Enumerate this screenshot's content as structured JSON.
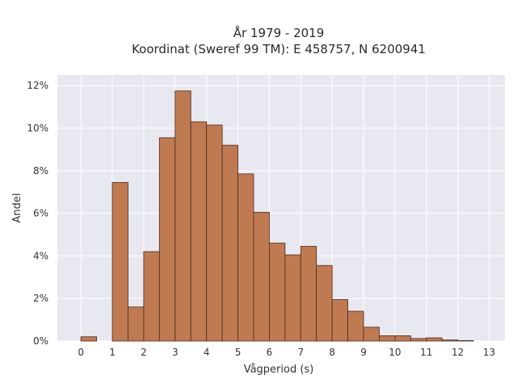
{
  "chart_data": {
    "type": "bar",
    "title": [
      "År 1979 - 2019",
      "Koordinat (Sweref 99 TM): E 458757, N 6200941"
    ],
    "xlabel": "Vågperiod (s)",
    "ylabel": "Andel",
    "xlim": [
      -0.75,
      13.5
    ],
    "ylim": [
      0,
      12.5
    ],
    "x_ticks": [
      0,
      1,
      2,
      3,
      4,
      5,
      6,
      7,
      8,
      9,
      10,
      11,
      12,
      13
    ],
    "x_tick_labels": [
      "0",
      "1",
      "2",
      "3",
      "4",
      "5",
      "6",
      "7",
      "8",
      "9",
      "10",
      "11",
      "12",
      "13"
    ],
    "y_ticks": [
      0,
      2,
      4,
      6,
      8,
      10,
      12
    ],
    "y_tick_labels": [
      "0%",
      "2%",
      "4%",
      "6%",
      "8%",
      "10%",
      "12%"
    ],
    "bin_width": 0.5,
    "bins": [
      {
        "x0": 0.0,
        "value": 0.2
      },
      {
        "x0": 1.0,
        "value": 7.45
      },
      {
        "x0": 1.5,
        "value": 1.6
      },
      {
        "x0": 2.0,
        "value": 4.2
      },
      {
        "x0": 2.5,
        "value": 9.55
      },
      {
        "x0": 3.0,
        "value": 11.75
      },
      {
        "x0": 3.5,
        "value": 10.3
      },
      {
        "x0": 4.0,
        "value": 10.15
      },
      {
        "x0": 4.5,
        "value": 9.2
      },
      {
        "x0": 5.0,
        "value": 7.85
      },
      {
        "x0": 5.5,
        "value": 6.05
      },
      {
        "x0": 6.0,
        "value": 4.6
      },
      {
        "x0": 6.5,
        "value": 4.05
      },
      {
        "x0": 7.0,
        "value": 4.45
      },
      {
        "x0": 7.5,
        "value": 3.55
      },
      {
        "x0": 8.0,
        "value": 1.95
      },
      {
        "x0": 8.5,
        "value": 1.4
      },
      {
        "x0": 9.0,
        "value": 0.65
      },
      {
        "x0": 9.5,
        "value": 0.25
      },
      {
        "x0": 10.0,
        "value": 0.25
      },
      {
        "x0": 10.5,
        "value": 0.12
      },
      {
        "x0": 11.0,
        "value": 0.15
      },
      {
        "x0": 11.5,
        "value": 0.05
      },
      {
        "x0": 12.0,
        "value": 0.02
      }
    ],
    "grid": true,
    "colors": {
      "bar_fill": "#c07a52",
      "bar_edge": "#4a2a1a",
      "plot_background": "#e8e8f1",
      "grid": "#ffffff"
    }
  }
}
